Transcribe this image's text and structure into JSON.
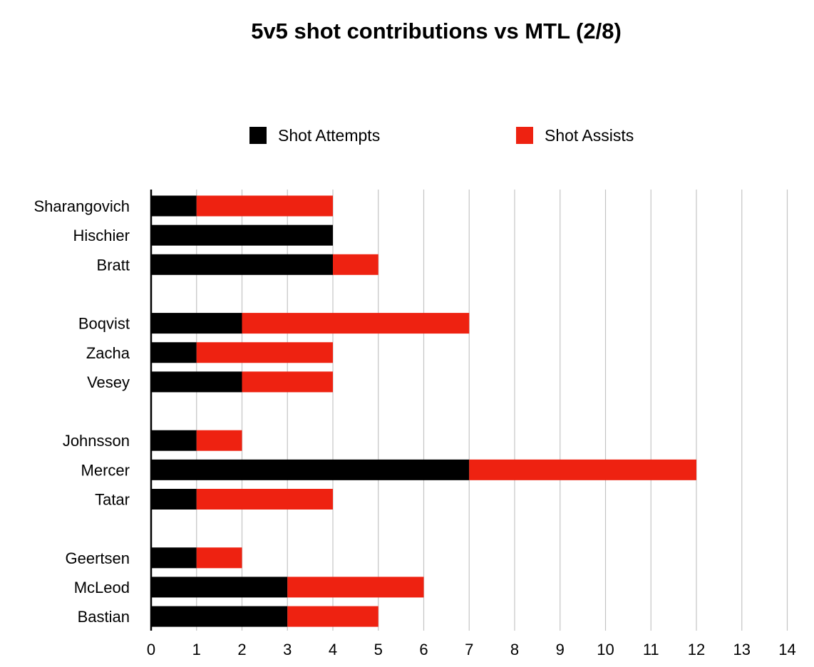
{
  "chart_data": {
    "type": "bar",
    "orientation": "horizontal",
    "stacked": true,
    "title": "5v5 shot contributions vs MTL (2/8)",
    "xlabel": "",
    "ylabel": "",
    "xlim": [
      0,
      14
    ],
    "x_ticks": [
      "0",
      "1",
      "2",
      "3",
      "4",
      "5",
      "6",
      "7",
      "8",
      "9",
      "10",
      "11",
      "12",
      "13",
      "14"
    ],
    "grid": "vertical",
    "legend_position": "top",
    "categories": [
      "Sharangovich",
      "Hischier",
      "Bratt",
      "",
      "Boqvist",
      "Zacha",
      "Vesey",
      "",
      "Johnsson",
      "Mercer",
      "Tatar",
      "",
      "Geertsen",
      "McLeod",
      "Bastian"
    ],
    "series": [
      {
        "name": "Shot Attempts",
        "color": "#000000",
        "values": [
          1,
          4,
          4,
          null,
          2,
          1,
          2,
          null,
          1,
          7,
          1,
          null,
          1,
          3,
          3
        ]
      },
      {
        "name": "Shot Assists",
        "color": "#ee2211",
        "values": [
          3,
          0,
          1,
          null,
          5,
          3,
          2,
          null,
          1,
          5,
          3,
          null,
          1,
          3,
          2
        ]
      }
    ]
  }
}
